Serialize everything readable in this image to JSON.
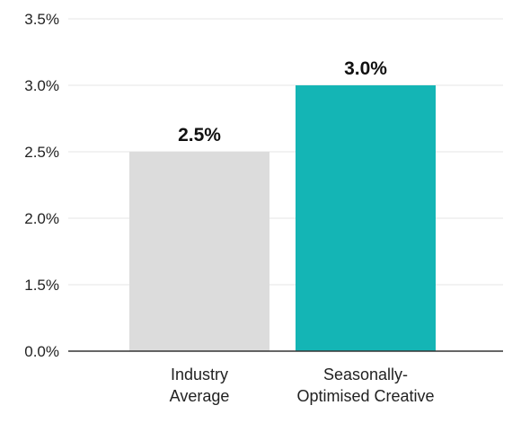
{
  "chart_data": {
    "type": "bar",
    "categories": [
      "Industry Average",
      "Seasonally-Optimised Creative"
    ],
    "category_lines": [
      [
        "Industry",
        "Average"
      ],
      [
        "Seasonally-",
        "Optimised Creative"
      ]
    ],
    "values": [
      2.5,
      3.0
    ],
    "data_labels": [
      "2.5%",
      "3.0%"
    ],
    "bar_colors": [
      "#dcdcdc",
      "#14b5b5"
    ],
    "y_tick_labels": [
      "0.0%",
      "1.5%",
      "2.0%",
      "2.5%",
      "3.0%",
      "3.5%"
    ],
    "title": "",
    "xlabel": "",
    "ylabel": "",
    "grid": true,
    "gridline_color": "#e6e6e6",
    "axis_color": "#333333"
  }
}
